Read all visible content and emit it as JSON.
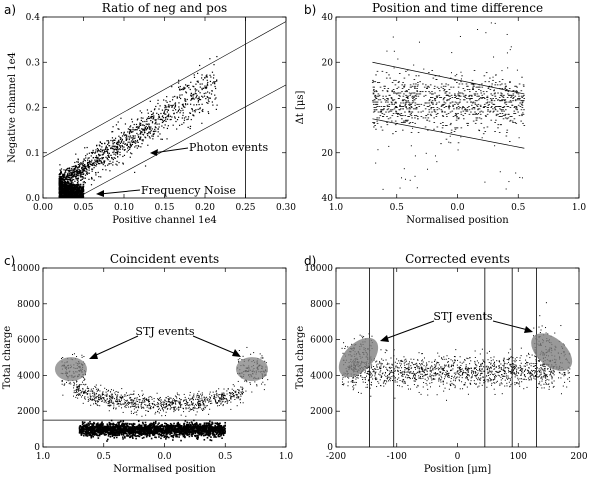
{
  "chart_data": [
    {
      "panel_label": "a)",
      "type": "scatter",
      "title": "Ratio of neg and pos",
      "xlabel": "Positive channel 1e4",
      "ylabel": "Negative channel 1e4",
      "xlim": [
        0.0,
        0.3
      ],
      "ylim": [
        0.0,
        0.4
      ],
      "xticks": [
        "0.00",
        "0.05",
        "0.10",
        "0.15",
        "0.20",
        "0.25",
        "0.30"
      ],
      "yticks": [
        "0.0",
        "0.1",
        "0.2",
        "0.3",
        "0.4"
      ],
      "photon_band": {
        "x_range": [
          0.02,
          0.215
        ],
        "slope": 1.15,
        "intercept": 0.008,
        "spread": 0.02
      },
      "noise_cluster": {
        "x_range": [
          0.02,
          0.05
        ],
        "y_range": [
          0.0,
          0.03
        ]
      },
      "lines": {
        "upper": [
          [
            0.0,
            0.09
          ],
          [
            0.3,
            0.39
          ]
        ],
        "lower": [
          [
            0.0,
            -0.04
          ],
          [
            0.3,
            0.25
          ]
        ],
        "vertical_x": 0.25
      },
      "annotations": [
        {
          "text": "Photon events",
          "at": [
            0.12,
            0.13
          ]
        },
        {
          "text": "Frequency Noise",
          "at": [
            0.05,
            0.025
          ]
        }
      ]
    },
    {
      "panel_label": "b)",
      "type": "scatter",
      "title": "Position and time difference",
      "xlabel": "Normalised position",
      "ylabel": "Δt [μs]",
      "xlim": [
        1.0,
        -1.0
      ],
      "ylim": [
        -40,
        40
      ],
      "xticks": [
        "1.0",
        "0.5",
        "0.0",
        "0.5",
        "1.0"
      ],
      "yticks": [
        "40",
        "20",
        "0",
        "20",
        "40"
      ],
      "data_range": {
        "x": [
          0.7,
          -0.55
        ],
        "y": [
          -16,
          16
        ]
      },
      "lines": {
        "upper": [
          [
            0.7,
            20
          ],
          [
            -0.55,
            6
          ]
        ],
        "lower": [
          [
            0.7,
            -5
          ],
          [
            -0.55,
            -18
          ]
        ]
      }
    },
    {
      "panel_label": "c)",
      "type": "scatter",
      "title": "Coincident events",
      "xlabel": "Normalised position",
      "ylabel": "Total charge",
      "xlim": [
        1.0,
        -1.0
      ],
      "ylim": [
        0,
        10000
      ],
      "xticks": [
        "1.0",
        "0.5",
        "0.0",
        "0.5",
        "1.0"
      ],
      "yticks": [
        "0",
        "2000",
        "4000",
        "6000",
        "8000",
        "10000"
      ],
      "clusters": [
        {
          "name": "dense band",
          "x": [
            0.7,
            -0.5
          ],
          "y_center": 950,
          "y_spread": 180
        },
        {
          "name": "arc",
          "x": [
            0.75,
            -0.65
          ],
          "y_center": 2700,
          "y_spread": 500
        },
        {
          "name": "left STJ",
          "x": [
            0.85,
            0.65
          ],
          "y_center": 4300,
          "y_spread": 450
        },
        {
          "name": "right STJ",
          "x": [
            -0.6,
            -0.85
          ],
          "y_center": 4300,
          "y_spread": 450
        }
      ],
      "hline_y": 1500,
      "ellipses": [
        [
          0.77,
          4350
        ],
        [
          -0.72,
          4350
        ]
      ],
      "annotations": [
        {
          "text": "STJ events"
        }
      ]
    },
    {
      "panel_label": "d)",
      "type": "scatter",
      "title": "Corrected events",
      "xlabel": "Position [μm]",
      "ylabel": "Total charge",
      "xlim": [
        -200,
        200
      ],
      "ylim": [
        0,
        10000
      ],
      "xticks": [
        "-200",
        "-100",
        "0",
        "100",
        "200"
      ],
      "yticks": [
        "0",
        "2000",
        "4000",
        "6000",
        "8000",
        "10000"
      ],
      "clusters": [
        {
          "name": "main band",
          "x": [
            -175,
            160
          ],
          "y_center": 4200,
          "y_spread": 450
        },
        {
          "name": "left STJ",
          "x": [
            -190,
            -140
          ],
          "y_center": 5000,
          "y_spread": 600
        },
        {
          "name": "right STJ",
          "x": [
            125,
            185
          ],
          "y_center": 5200,
          "y_spread": 700
        }
      ],
      "vlines_x": [
        -145,
        -105,
        45,
        90,
        130
      ],
      "ellipses": [
        [
          -163,
          5000
        ],
        [
          155,
          5300
        ]
      ],
      "annotations": [
        {
          "text": "STJ events"
        }
      ]
    }
  ]
}
